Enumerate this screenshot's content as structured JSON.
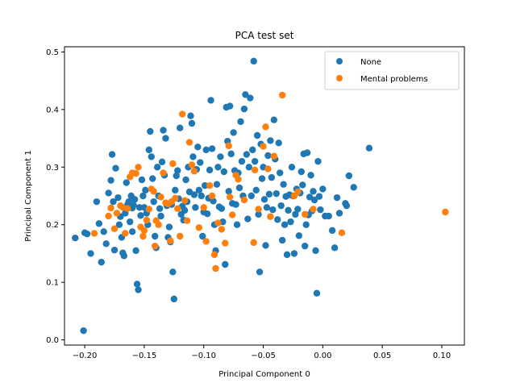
{
  "chart_data": {
    "type": "scatter",
    "title": "PCA test set",
    "xlabel": "Principal Component 0",
    "ylabel": "Principal Component 1",
    "xlim": [
      -0.217,
      0.119
    ],
    "ylim": [
      -0.009,
      0.509
    ],
    "xticks": [
      -0.2,
      -0.15,
      -0.1,
      -0.05,
      0.0,
      0.05,
      0.1
    ],
    "xtick_labels": [
      "−0.20",
      "−0.15",
      "−0.10",
      "−0.05",
      "0.00",
      "0.05",
      "0.10"
    ],
    "yticks": [
      0.0,
      0.1,
      0.2,
      0.3,
      0.4,
      0.5
    ],
    "ytick_labels": [
      "0.0",
      "0.1",
      "0.2",
      "0.3",
      "0.4",
      "0.5"
    ],
    "grid": false,
    "legend_position": "top-right",
    "series": [
      {
        "name": "None",
        "color": "#1f77b4",
        "points": [
          [
            -0.208,
            0.177
          ],
          [
            -0.2,
            0.186
          ],
          [
            -0.198,
            0.184
          ],
          [
            -0.201,
            0.016
          ],
          [
            -0.195,
            0.15
          ],
          [
            -0.19,
            0.24
          ],
          [
            -0.188,
            0.202
          ],
          [
            -0.186,
            0.135
          ],
          [
            -0.184,
            0.188
          ],
          [
            -0.182,
            0.167
          ],
          [
            -0.18,
            0.255
          ],
          [
            -0.178,
            0.277
          ],
          [
            -0.177,
            0.322
          ],
          [
            -0.176,
            0.24
          ],
          [
            -0.175,
            0.156
          ],
          [
            -0.174,
            0.298
          ],
          [
            -0.172,
            0.247
          ],
          [
            -0.171,
            0.2
          ],
          [
            -0.17,
            0.214
          ],
          [
            -0.169,
            0.178
          ],
          [
            -0.168,
            0.151
          ],
          [
            -0.167,
            0.146
          ],
          [
            -0.166,
            0.22
          ],
          [
            -0.165,
            0.273
          ],
          [
            -0.164,
            0.235
          ],
          [
            -0.163,
            0.24
          ],
          [
            -0.162,
            0.205
          ],
          [
            -0.161,
            0.25
          ],
          [
            -0.16,
            0.229
          ],
          [
            -0.16,
            0.188
          ],
          [
            -0.159,
            0.234
          ],
          [
            -0.158,
            0.244
          ],
          [
            -0.157,
            0.155
          ],
          [
            -0.156,
            0.097
          ],
          [
            -0.155,
            0.087
          ],
          [
            -0.154,
            0.23
          ],
          [
            -0.153,
            0.216
          ],
          [
            -0.152,
            0.278
          ],
          [
            -0.151,
            0.25
          ],
          [
            -0.15,
            0.23
          ],
          [
            -0.149,
            0.26
          ],
          [
            -0.148,
            0.22
          ],
          [
            -0.147,
            0.2
          ],
          [
            -0.146,
            0.33
          ],
          [
            -0.145,
            0.362
          ],
          [
            -0.144,
            0.318
          ],
          [
            -0.143,
            0.28
          ],
          [
            -0.142,
            0.24
          ],
          [
            -0.141,
            0.18
          ],
          [
            -0.14,
            0.16
          ],
          [
            -0.139,
            0.3
          ],
          [
            -0.138,
            0.25
          ],
          [
            -0.137,
            0.228
          ],
          [
            -0.136,
            0.215
          ],
          [
            -0.135,
            0.309
          ],
          [
            -0.134,
            0.364
          ],
          [
            -0.133,
            0.286
          ],
          [
            -0.132,
            0.35
          ],
          [
            -0.131,
            0.233
          ],
          [
            -0.13,
            0.178
          ],
          [
            -0.129,
            0.196
          ],
          [
            -0.128,
            0.17
          ],
          [
            -0.127,
            0.235
          ],
          [
            -0.126,
            0.118
          ],
          [
            -0.125,
            0.071
          ],
          [
            -0.124,
            0.26
          ],
          [
            -0.123,
            0.285
          ],
          [
            -0.122,
            0.294
          ],
          [
            -0.121,
            0.245
          ],
          [
            -0.12,
            0.368
          ],
          [
            -0.119,
            0.218
          ],
          [
            -0.118,
            0.232
          ],
          [
            -0.117,
            0.208
          ],
          [
            -0.116,
            0.225
          ],
          [
            -0.115,
            0.278
          ],
          [
            -0.114,
            0.24
          ],
          [
            -0.113,
            0.3
          ],
          [
            -0.112,
            0.257
          ],
          [
            -0.111,
            0.389
          ],
          [
            -0.11,
            0.376
          ],
          [
            -0.109,
            0.318
          ],
          [
            -0.108,
            0.252
          ],
          [
            -0.107,
            0.23
          ],
          [
            -0.106,
            0.296
          ],
          [
            -0.105,
            0.335
          ],
          [
            -0.104,
            0.26
          ],
          [
            -0.103,
            0.308
          ],
          [
            -0.102,
            0.25
          ],
          [
            -0.101,
            0.18
          ],
          [
            -0.1,
            0.222
          ],
          [
            -0.099,
            0.268
          ],
          [
            -0.098,
            0.33
          ],
          [
            -0.097,
            0.219
          ],
          [
            -0.096,
            0.246
          ],
          [
            -0.095,
            0.295
          ],
          [
            -0.094,
            0.416
          ],
          [
            -0.093,
            0.332
          ],
          [
            -0.092,
            0.241
          ],
          [
            -0.091,
            0.2
          ],
          [
            -0.09,
            0.155
          ],
          [
            -0.089,
            0.27
          ],
          [
            -0.088,
            0.3
          ],
          [
            -0.087,
            0.231
          ],
          [
            -0.086,
            0.318
          ],
          [
            -0.085,
            0.228
          ],
          [
            -0.084,
            0.205
          ],
          [
            -0.083,
            0.292
          ],
          [
            -0.082,
            0.131
          ],
          [
            -0.081,
            0.404
          ],
          [
            -0.08,
            0.345
          ],
          [
            -0.079,
            0.258
          ],
          [
            -0.078,
            0.406
          ],
          [
            -0.077,
            0.323
          ],
          [
            -0.076,
            0.237
          ],
          [
            -0.075,
            0.36
          ],
          [
            -0.074,
            0.294
          ],
          [
            -0.073,
            0.235
          ],
          [
            -0.072,
            0.2
          ],
          [
            -0.071,
            0.29
          ],
          [
            -0.07,
            0.264
          ],
          [
            -0.069,
            0.379
          ],
          [
            -0.068,
            0.31
          ],
          [
            -0.067,
            0.25
          ],
          [
            -0.066,
            0.401
          ],
          [
            -0.065,
            0.426
          ],
          [
            -0.064,
            0.322
          ],
          [
            -0.063,
            0.21
          ],
          [
            -0.062,
            0.3
          ],
          [
            -0.061,
            0.42
          ],
          [
            -0.06,
            0.25
          ],
          [
            -0.059,
            0.33
          ],
          [
            -0.058,
            0.484
          ],
          [
            -0.057,
            0.31
          ],
          [
            -0.056,
            0.26
          ],
          [
            -0.055,
            0.355
          ],
          [
            -0.054,
            0.218
          ],
          [
            -0.053,
            0.118
          ],
          [
            -0.052,
            0.34
          ],
          [
            -0.051,
            0.28
          ],
          [
            -0.05,
            0.3
          ],
          [
            -0.049,
            0.244
          ],
          [
            -0.048,
            0.164
          ],
          [
            -0.047,
            0.23
          ],
          [
            -0.046,
            0.32
          ],
          [
            -0.045,
            0.253
          ],
          [
            -0.044,
            0.346
          ],
          [
            -0.043,
            0.282
          ],
          [
            -0.042,
            0.226
          ],
          [
            -0.041,
            0.382
          ],
          [
            -0.04,
            0.314
          ],
          [
            -0.039,
            0.254
          ],
          [
            -0.038,
            0.209
          ],
          [
            -0.037,
            0.342
          ],
          [
            -0.036,
            0.29
          ],
          [
            -0.035,
            0.233
          ],
          [
            -0.034,
            0.173
          ],
          [
            -0.033,
            0.27
          ],
          [
            -0.032,
            0.2
          ],
          [
            -0.031,
            0.249
          ],
          [
            -0.03,
            0.148
          ],
          [
            -0.029,
            0.225
          ],
          [
            -0.028,
            0.252
          ],
          [
            -0.027,
            0.205
          ],
          [
            -0.026,
            0.3
          ],
          [
            -0.025,
            0.25
          ],
          [
            -0.024,
            0.15
          ],
          [
            -0.023,
            0.218
          ],
          [
            -0.022,
            0.262
          ],
          [
            -0.021,
            0.227
          ],
          [
            -0.02,
            0.181
          ],
          [
            -0.019,
            0.255
          ],
          [
            -0.018,
            0.292
          ],
          [
            -0.017,
            0.269
          ],
          [
            -0.016,
            0.323
          ],
          [
            -0.015,
            0.163
          ],
          [
            -0.014,
            0.2
          ],
          [
            -0.013,
            0.325
          ],
          [
            -0.012,
            0.217
          ],
          [
            -0.011,
            0.248
          ],
          [
            -0.01,
            0.286
          ],
          [
            -0.009,
            0.224
          ],
          [
            -0.008,
            0.258
          ],
          [
            -0.007,
            0.243
          ],
          [
            -0.006,
            0.155
          ],
          [
            -0.005,
            0.081
          ],
          [
            -0.004,
            0.31
          ],
          [
            -0.003,
            0.249
          ],
          [
            -0.002,
            0.226
          ],
          [
            0.0,
            0.262
          ],
          [
            0.002,
            0.215
          ],
          [
            0.005,
            0.215
          ],
          [
            0.008,
            0.19
          ],
          [
            0.012,
            0.247
          ],
          [
            0.014,
            0.22
          ],
          [
            0.019,
            0.237
          ],
          [
            0.02,
            0.233
          ],
          [
            0.022,
            0.285
          ],
          [
            0.026,
            0.265
          ],
          [
            0.039,
            0.333
          ],
          [
            0.01,
            0.16
          ]
        ]
      },
      {
        "name": "Mental problems",
        "color": "#ff7f0e",
        "points": [
          [
            -0.192,
            0.185
          ],
          [
            -0.18,
            0.215
          ],
          [
            -0.178,
            0.229
          ],
          [
            -0.175,
            0.193
          ],
          [
            -0.173,
            0.22
          ],
          [
            -0.17,
            0.233
          ],
          [
            -0.168,
            0.23
          ],
          [
            -0.166,
            0.185
          ],
          [
            -0.164,
            0.228
          ],
          [
            -0.162,
            0.283
          ],
          [
            -0.16,
            0.29
          ],
          [
            -0.157,
            0.289
          ],
          [
            -0.155,
            0.3
          ],
          [
            -0.153,
            0.196
          ],
          [
            -0.151,
            0.18
          ],
          [
            -0.15,
            0.19
          ],
          [
            -0.148,
            0.208
          ],
          [
            -0.146,
            0.227
          ],
          [
            -0.144,
            0.262
          ],
          [
            -0.142,
            0.258
          ],
          [
            -0.141,
            0.163
          ],
          [
            -0.14,
            0.207
          ],
          [
            -0.138,
            0.2
          ],
          [
            -0.136,
            0.248
          ],
          [
            -0.134,
            0.29
          ],
          [
            -0.132,
            0.238
          ],
          [
            -0.13,
            0.236
          ],
          [
            -0.128,
            0.172
          ],
          [
            -0.127,
            0.24
          ],
          [
            -0.126,
            0.306
          ],
          [
            -0.124,
            0.246
          ],
          [
            -0.122,
            0.228
          ],
          [
            -0.12,
            0.18
          ],
          [
            -0.118,
            0.392
          ],
          [
            -0.116,
            0.242
          ],
          [
            -0.114,
            0.207
          ],
          [
            -0.112,
            0.343
          ],
          [
            -0.11,
            0.304
          ],
          [
            -0.108,
            0.293
          ],
          [
            -0.104,
            0.195
          ],
          [
            -0.1,
            0.23
          ],
          [
            -0.098,
            0.171
          ],
          [
            -0.095,
            0.268
          ],
          [
            -0.093,
            0.25
          ],
          [
            -0.091,
            0.148
          ],
          [
            -0.09,
            0.124
          ],
          [
            -0.088,
            0.203
          ],
          [
            -0.085,
            0.192
          ],
          [
            -0.082,
            0.168
          ],
          [
            -0.079,
            0.337
          ],
          [
            -0.078,
            0.248
          ],
          [
            -0.076,
            0.217
          ],
          [
            -0.073,
            0.286
          ],
          [
            -0.071,
            0.279
          ],
          [
            -0.066,
            0.243
          ],
          [
            -0.058,
            0.169
          ],
          [
            -0.057,
            0.295
          ],
          [
            -0.054,
            0.227
          ],
          [
            -0.05,
            0.336
          ],
          [
            -0.048,
            0.37
          ],
          [
            -0.046,
            0.297
          ],
          [
            -0.044,
            0.214
          ],
          [
            -0.041,
            0.319
          ],
          [
            -0.034,
            0.425
          ],
          [
            -0.024,
            0.25
          ],
          [
            -0.021,
            0.257
          ],
          [
            -0.015,
            0.218
          ],
          [
            -0.008,
            0.227
          ],
          [
            0.016,
            0.186
          ],
          [
            0.103,
            0.222
          ]
        ]
      }
    ]
  }
}
